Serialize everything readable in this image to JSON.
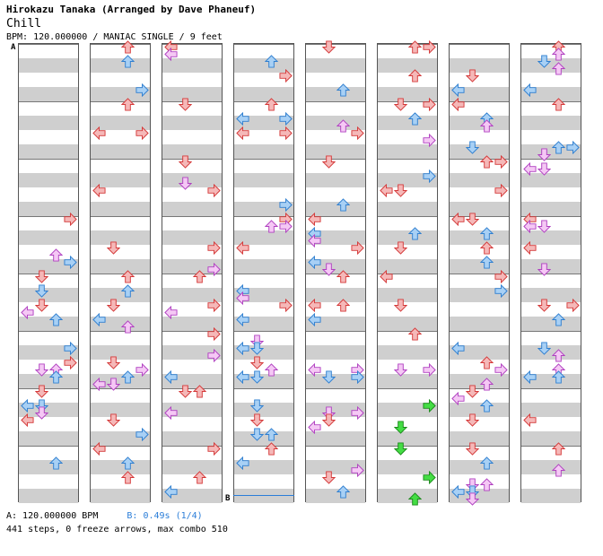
{
  "header": {
    "title": "Hirokazu Tanaka (Arranged by Dave Phaneuf)",
    "subtitle": "Chill",
    "info": "BPM: 120.000000 / MANIAC SINGLE / 9 feet"
  },
  "markers": {
    "a": "A",
    "b": "B"
  },
  "footer": {
    "bpm_a": "A: 120.000000 BPM",
    "bpm_b": "B: 0.49s (1/4)",
    "stats": "441 steps, 0 freeze arrows, max combo 510"
  },
  "colors": {
    "quarter": "#f5b8b8",
    "quarter_stroke": "#d43838",
    "eighth": "#a8d0f5",
    "eighth_stroke": "#2f7fd0",
    "sixteenth": "#f5c8f5",
    "sixteenth_stroke": "#b040c0",
    "green": "#44dd44",
    "green_stroke": "#1a8a1a",
    "band": "#cfcfcf",
    "bpm_b_text": "#2a7dd8"
  },
  "icons": {
    "left": "left-arrow-icon",
    "down": "down-arrow-icon",
    "up": "up-arrow-icon",
    "right": "right-arrow-icon"
  },
  "chart_data": {
    "type": "step-chart",
    "columns": 8,
    "measures_per_column": 8,
    "lanes": [
      "left",
      "down",
      "up",
      "right"
    ],
    "steps_total": 441,
    "freeze_arrows": 0,
    "max_combo": 510
  }
}
